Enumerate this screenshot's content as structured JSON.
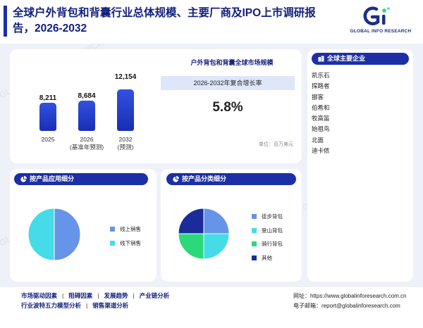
{
  "header": {
    "title": "全球户外背包和背囊行业总体规模、主要厂商及IPO上市调研报告，2026-2032"
  },
  "logo": {
    "brand": "GLOBAL INFO RESEARCH"
  },
  "market": {
    "title": "户外背包和背囊全球市场规模",
    "cagr_label": "2026-2032年复合增长率",
    "cagr_value": "5.8%",
    "unit": "单位：百万美元",
    "bars": [
      {
        "value": "8,211",
        "label": "2025",
        "sublabel": ""
      },
      {
        "value": "8,684",
        "label": "2026",
        "sublabel": "(基准年预测)"
      },
      {
        "value": "12,154",
        "label": "2032",
        "sublabel": "(预测)"
      }
    ]
  },
  "chart_data": [
    {
      "type": "bar",
      "categories": [
        "2025",
        "2026",
        "2032"
      ],
      "values": [
        8211,
        8684,
        12154
      ],
      "title": "",
      "xlabel": "",
      "ylabel": ""
    },
    {
      "type": "pie",
      "labels": [
        "线上销售",
        "线下销售"
      ],
      "values": [
        50,
        50
      ],
      "colors": [
        "#6694e8",
        "#45dbe9"
      ]
    },
    {
      "type": "pie",
      "labels": [
        "徒步背包",
        "登山背包",
        "骑行背包",
        "其他"
      ],
      "values": [
        25,
        25,
        25,
        25
      ],
      "colors": [
        "#6694e8",
        "#45dbe9",
        "#2bd97a",
        "#1c2b9a"
      ]
    }
  ],
  "companies": {
    "heading": "全球主要企业",
    "items": [
      "凯乐石",
      "探路者",
      "挪客",
      "伯希和",
      "牧高笛",
      "始祖鸟",
      "北面",
      "迪卡侬"
    ]
  },
  "app_segment": {
    "heading": "按产品应用细分",
    "legend": [
      {
        "label": "线上销售",
        "color": "#6694e8"
      },
      {
        "label": "线下销售",
        "color": "#45dbe9"
      }
    ]
  },
  "prod_segment": {
    "heading": "按产品分类细分",
    "legend": [
      {
        "label": "徒步背包",
        "color": "#6694e8"
      },
      {
        "label": "登山背包",
        "color": "#45dbe9"
      },
      {
        "label": "骑行背包",
        "color": "#2bd97a"
      },
      {
        "label": "其他",
        "color": "#1c2b9a"
      }
    ]
  },
  "footer": {
    "links": [
      "市场驱动因素",
      "阻碍因素",
      "发展趋势",
      "产业链分析",
      "行业波特五力模型分析",
      "销售渠道分析"
    ],
    "website_label": "网址：",
    "website": "https://www.globalinforesearch.com.cn",
    "email_label": "电子邮箱：",
    "email": "report@globalinforesearch.com"
  },
  "watermark": "GLOBAL INFO RESEARCH"
}
